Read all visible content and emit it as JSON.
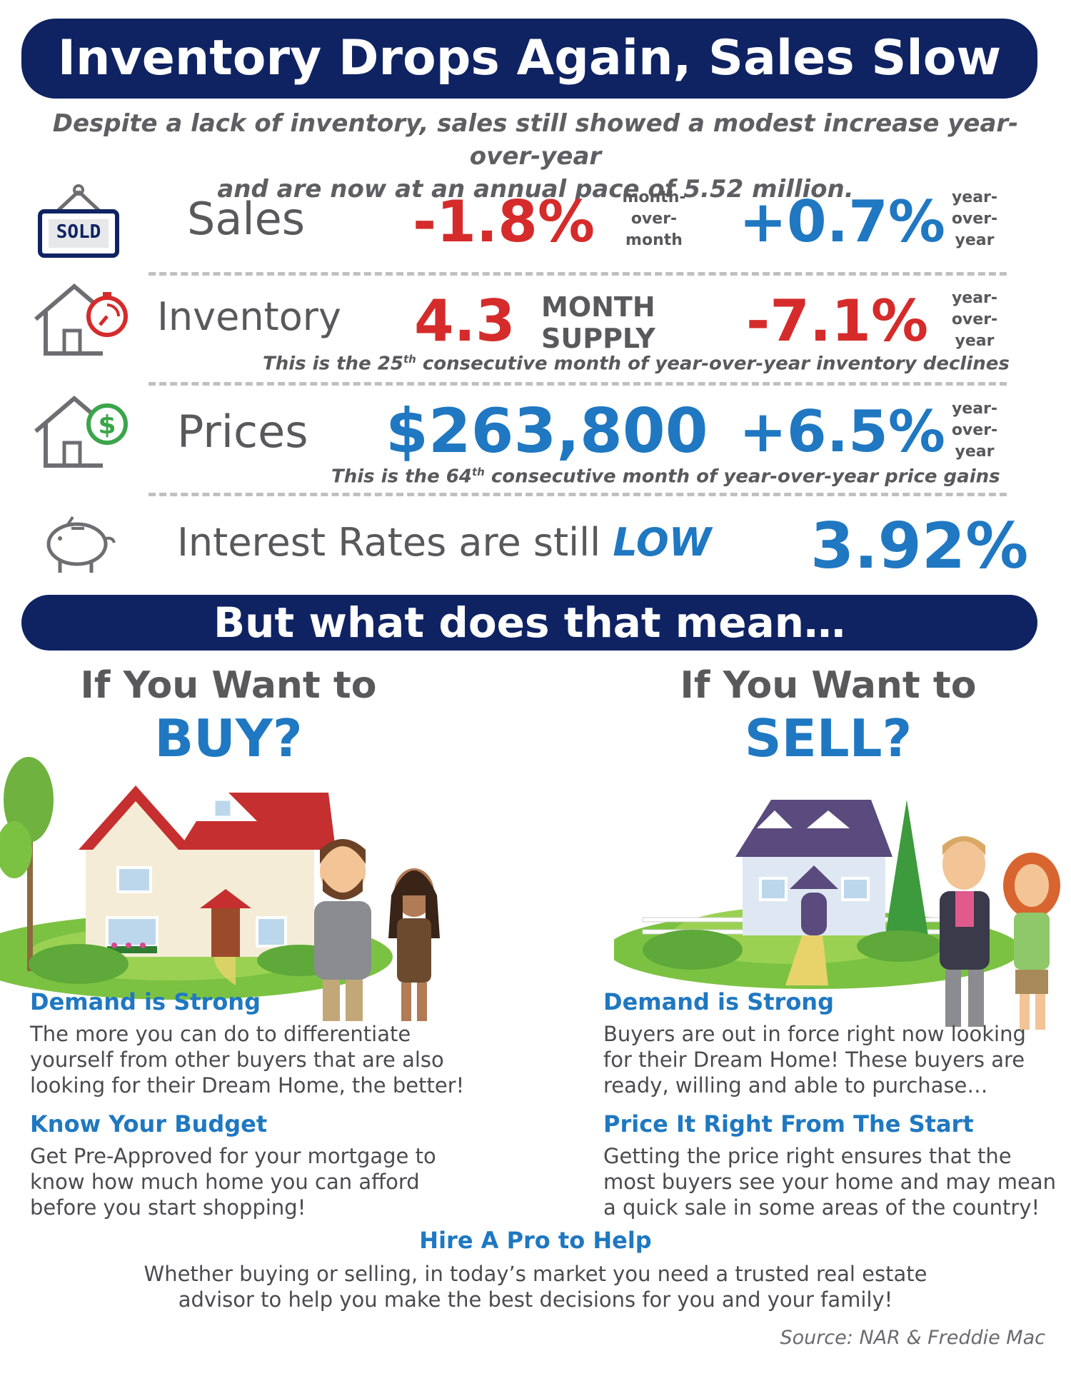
{
  "header": {
    "title": "Inventory Drops Again, Sales Slow",
    "subtitle_line1": "Despite a lack of inventory, sales still showed a modest increase year-over-year",
    "subtitle_line2": "and are now at an annual pace of 5.52 million."
  },
  "sales": {
    "icon": "sold-sign-icon",
    "sign_text": "SOLD",
    "label": "Sales",
    "mom_value": "-1.8%",
    "mom_label": [
      "month-",
      "over-",
      "month"
    ],
    "yoy_value": "+0.7%",
    "yoy_label": [
      "year-",
      "over-",
      "year"
    ]
  },
  "inventory": {
    "icon": "house-timer-icon",
    "label": "Inventory",
    "supply_value": "4.3",
    "supply_label_1": "MONTH",
    "supply_label_2": "SUPPLY",
    "yoy_value": "-7.1%",
    "yoy_label": [
      "year-",
      "over-",
      "year"
    ],
    "note_prefix": "This is the 25",
    "note_sup": "th",
    "note_suffix": " consecutive month of year-over-year inventory declines"
  },
  "prices": {
    "icon": "house-dollar-icon",
    "label": "Prices",
    "median_value": "$263,800",
    "yoy_value": "+6.5%",
    "yoy_label": [
      "year-",
      "over-",
      "year"
    ],
    "note_prefix": "This is the 64",
    "note_sup": "th",
    "note_suffix": " consecutive month of year-over-year price gains"
  },
  "rates": {
    "icon": "piggy-bank-icon",
    "label": "Interest Rates are still",
    "emphasis": "LOW",
    "value": "3.92%"
  },
  "mean_banner": "But what does that mean…",
  "buy": {
    "heading": "If You Want to",
    "word": "BUY?",
    "sections": [
      {
        "title": "Demand is Strong",
        "lines": [
          "The more you can do to differentiate",
          "yourself from other buyers that are also",
          "looking for their Dream Home, the better!"
        ]
      },
      {
        "title": "Know Your Budget",
        "lines": [
          "Get Pre-Approved for your mortgage to",
          "know how much home you can afford",
          "before you start shopping!"
        ]
      }
    ]
  },
  "sell": {
    "heading": "If You Want to",
    "word": "SELL?",
    "sections": [
      {
        "title": "Demand is Strong",
        "lines": [
          "Buyers are out in force right now looking",
          "for their Dream Home! These buyers are",
          "ready, willing and able to purchase…"
        ]
      },
      {
        "title": "Price It Right From The Start",
        "lines": [
          "Getting the price right ensures that the",
          "most buyers see your home and may mean",
          "a quick sale in some areas of the country!"
        ]
      }
    ]
  },
  "pro": {
    "title": "Hire A Pro to Help",
    "line1": "Whether buying or selling, in today’s market you need a trusted real estate",
    "line2": "advisor to help you make the best decisions for you and your family!"
  },
  "source": "Source: NAR & Freddie Mac",
  "colors": {
    "navy": "#0f2363",
    "red": "#d52b2b",
    "blue": "#1f78c1",
    "gray": "#58595b",
    "green": "#3aa54a"
  }
}
